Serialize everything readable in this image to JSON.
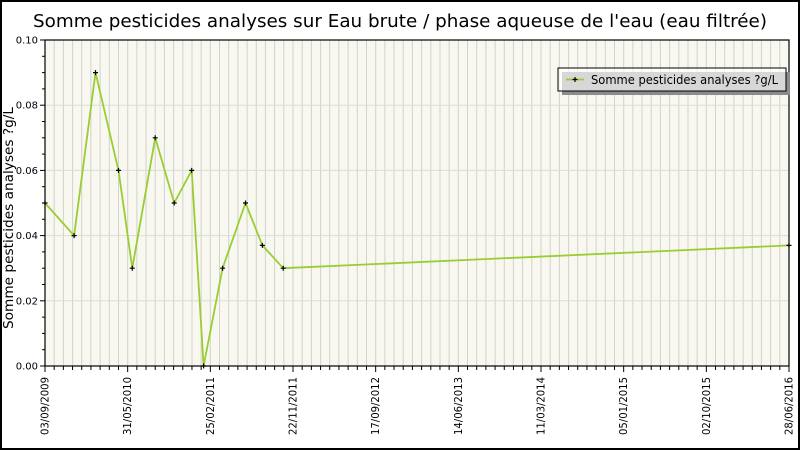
{
  "colors": {
    "line": "#9acd32",
    "marker": "#000000",
    "plot_bg": "#f8f8f0",
    "v_grid": "#d2d2cc",
    "h_grid": "#dcdcd8",
    "axis": "#000000",
    "text": "#000000",
    "legend_bg": "rgba(255,255,255,0.65)",
    "legend_border": "#000000",
    "legend_shadow": "#8c8c8c",
    "frame_border": "#000000",
    "page_bg": "#ffffff"
  },
  "chart_data": {
    "type": "line",
    "title": "Somme pesticides analyses sur Eau brute / phase aqueuse de l'eau (eau filtrée)",
    "xlabel": "",
    "ylabel": "Somme pesticides analyses ?g/L",
    "ylim": [
      0,
      0.1
    ],
    "y_major_step": 0.02,
    "y_minor_step": 0.005,
    "y_tick_labels": [
      "0.00",
      "0.02",
      "0.04",
      "0.06",
      "0.08",
      "0.10"
    ],
    "x_unit": "days since first x tick (estimated from plot)",
    "x_range": [
      0,
      2430
    ],
    "x_major_step": 270,
    "x_minor_step": 30,
    "x_tick_labels": [
      "03/09/2009",
      "31/05/2010",
      "25/02/2011",
      "22/11/2011",
      "17/09/2012",
      "14/06/2013",
      "11/03/2014",
      "05/01/2015",
      "02/10/2015",
      "28/06/2016"
    ],
    "grid": true,
    "legend_position": "top-right",
    "series": [
      {
        "name": "Somme pesticides analyses ?g/L",
        "marker": "plus",
        "x": [
          0,
          95,
          165,
          240,
          285,
          360,
          422,
          479,
          518,
          580,
          655,
          710,
          778,
          2430
        ],
        "y": [
          0.05,
          0.04,
          0.09,
          0.06,
          0.03,
          0.07,
          0.05,
          0.06,
          0.0,
          0.03,
          0.05,
          0.037,
          0.03,
          0.037
        ]
      }
    ]
  }
}
